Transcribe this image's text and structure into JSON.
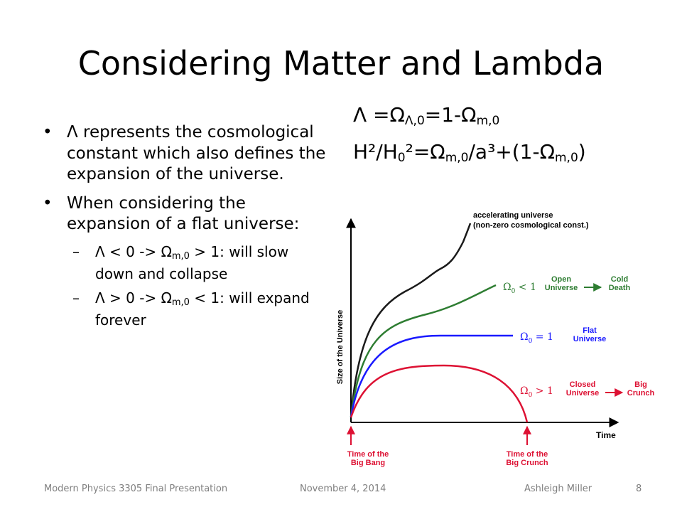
{
  "slide": {
    "title": "Considering Matter and Lambda",
    "equation1": {
      "a": "Λ =Ω",
      "a_sub": "Λ,0",
      "b": "=1-Ω",
      "b_sub": "m,0"
    },
    "equation2": {
      "a": "H²/H",
      "a_sub": "0",
      "b": "²=Ω",
      "b_sub": "m,0",
      "c": "/a³+(1-Ω",
      "c_sub": "m,0",
      "d": ")"
    },
    "bullets": [
      "Λ represents the cosmological constant which also defines the expansion of the universe.",
      "When considering the expansion of a flat universe:"
    ],
    "bullet_marker": "•",
    "sub_marker": "–",
    "sub_bullets": [
      {
        "pre": "Λ < 0 -> Ω",
        "sub": "m,0",
        "post": " > 1: will slow down and collapse"
      },
      {
        "pre": "Λ > 0 -> Ω",
        "sub": "m,0",
        "post": " < 1: will expand forever"
      }
    ]
  },
  "figure": {
    "y_axis_label": "Size of the Universe",
    "x_axis_label": "Time",
    "accelerating_line1": "accelerating universe",
    "accelerating_line2": "(non-zero cosmological const.)",
    "open_omega": "Ω",
    "open_omega_sub": "0",
    "open_cond": " < 1",
    "open_label1": "Open",
    "open_label2": "Universe",
    "open_fate1": "Cold",
    "open_fate2": "Death",
    "flat_omega": "Ω",
    "flat_omega_sub": "0",
    "flat_cond": " = 1",
    "flat_label1": "Flat",
    "flat_label2": "Universe",
    "closed_omega": "Ω",
    "closed_omega_sub": "0",
    "closed_cond": " > 1",
    "closed_label1": "Closed",
    "closed_label2": "Universe",
    "closed_fate1": "Big",
    "closed_fate2": "Crunch",
    "big_bang1": "Time of the",
    "big_bang2": "Big Bang",
    "big_crunch1": "Time of the",
    "big_crunch2": "Big Crunch",
    "colors": {
      "accelerating": "#1a1a1a",
      "open": "#2e7d32",
      "flat": "#1a1aff",
      "closed": "#dd1133",
      "label_black": "#000000"
    }
  },
  "footer": {
    "course": "Modern Physics 3305 Final Presentation",
    "date": "November 4, 2014",
    "author": "Ashleigh Miller",
    "page": "8"
  }
}
